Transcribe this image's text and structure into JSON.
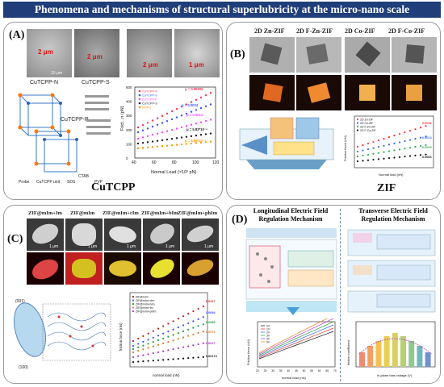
{
  "title": "Phenomena and mechanisms of structural superlubricity at the micro-nano scale",
  "panelA": {
    "label": "(A)",
    "caption": "CuTCPP",
    "sem_labels": [
      "2 μm",
      "2 μm",
      "2 μm",
      "1 μm"
    ],
    "scale_bar": "10 μm",
    "structure_labels": [
      "CuTCPP-N",
      "CuTCPP-S",
      "CuTCPP-P"
    ],
    "bottom_labels": [
      "Probe",
      "CuTCPP unit",
      "SDS",
      "CTAB",
      "PVP"
    ],
    "chart_data": {
      "type": "scatter",
      "xlabel": "Normal Load (×10³ pN)",
      "ylabel": "Frict...n (pN)",
      "xticks": [
        "40",
        "60",
        "80",
        "100",
        "120"
      ],
      "yticks": [
        "0",
        "100",
        "200",
        "300",
        "400",
        "500"
      ],
      "legend": [
        "CuTCPP-N",
        "CuTCPP-S",
        "CuTCPP-P",
        "CuTCPP-S",
        "HOPG"
      ],
      "colors": [
        "#ff3355",
        "#3355ff",
        "#ff44ff",
        "#222222",
        "#ff9900"
      ],
      "annotations": [
        "μ = 0.00305",
        "μ = 0.0024",
        "μ = 0.0014",
        "μ = 5.83*10⁻⁴",
        "μ = 5.59*10⁻⁴"
      ]
    }
  },
  "panelB": {
    "label": "(B)",
    "caption": "ZIF",
    "columns": [
      "2D Zn-ZIF",
      "2D F-Zn-ZIF",
      "2D Co-ZIF",
      "2D F-Co-ZIF"
    ],
    "chart_data": {
      "type": "scatter",
      "xlabel": "Normal load (nN)",
      "ylabel": "Friction force (nN)",
      "legend": [
        "2D Zn-ZIF",
        "2D Co-ZIF",
        "2D F-Zn-ZIF",
        "2D F-Co-ZIF"
      ],
      "colors": [
        "#ff3333",
        "#3366ff",
        "#33aa55",
        "#111111"
      ],
      "annotations": [
        "0.0092",
        "0.0014",
        "0.0009",
        "0.0003"
      ]
    }
  },
  "panelC": {
    "label": "(C)",
    "columns": [
      "ZIF@mIm+Im",
      "ZIF@mIm",
      "ZIF@mIm+cIm",
      "ZIF@mIm+bIm",
      "ZIF@mIm+phIm"
    ],
    "scale_labels": [
      "1 μm",
      "1 μm",
      "1 μm",
      "1 μm",
      "1 μm"
    ],
    "facets": [
      "(001)",
      "(100)"
    ],
    "chart_data": {
      "type": "scatter",
      "xlabel": "normal load (nN)",
      "ylabel": "friction force (nN)",
      "legend": [
        "ZIF@mIm",
        "ZIF@mIm+cIm",
        "ZIF@mIm+bIm",
        "ZIF@mIm+Im",
        "ZIF@mIm+phIm"
      ],
      "annotations": [
        "0.0117",
        "0.0094",
        "0.0085",
        "0.0076",
        "0.0047",
        "0.00174"
      ]
    }
  },
  "panelD": {
    "label": "(D)",
    "left_title": [
      "Longitudinal Electric Field",
      "Regulation Mechanism"
    ],
    "right_title": [
      "Transverse Electric Field",
      "Regulation Mechanism"
    ],
    "left_chart": {
      "type": "line",
      "xlabel": "normal load (nN)",
      "ylabel": "Friction force (nN)",
      "xticks": [
        "20",
        "25",
        "30",
        "35",
        "40",
        "45",
        "50",
        "55",
        "60",
        "65",
        "70"
      ],
      "legend": [
        "0V",
        "1V",
        "2V",
        "3V",
        "4V",
        "5V"
      ]
    },
    "right_chart": {
      "type": "bar",
      "xlabel": "in-plane bias voltage (V)",
      "ylabel": "friction coefficient"
    }
  }
}
